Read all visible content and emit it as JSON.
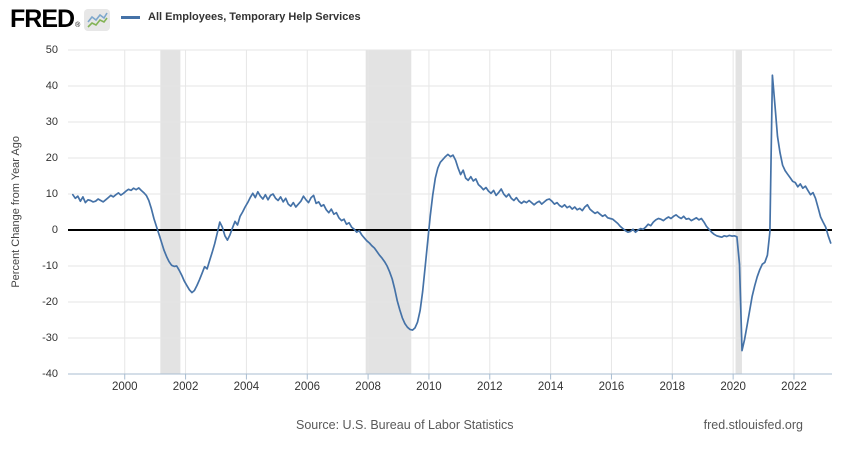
{
  "header": {
    "logo_text": "FRED",
    "registered_mark": "®",
    "legend": {
      "label": "All Employees, Temporary Help Services",
      "line_color": "#4572a7"
    }
  },
  "chart_data": {
    "type": "line",
    "title": "",
    "ylabel": "Percent Change from Year Ago",
    "units": "percent",
    "ylim": [
      -40,
      50
    ],
    "yticks": [
      50,
      40,
      30,
      20,
      10,
      0,
      -10,
      -20,
      -30,
      -40
    ],
    "xticks": [
      2000,
      2002,
      2004,
      2006,
      2008,
      2010,
      2012,
      2014,
      2016,
      2018,
      2020,
      2022
    ],
    "xlim_decimal_years": [
      1998.25,
      2023.25
    ],
    "grid": "both-light",
    "zero_line": true,
    "legend_position": "top-left-header",
    "recession_bands_decimal_years": [
      [
        2001.17,
        2001.83
      ],
      [
        2007.92,
        2009.42
      ],
      [
        2020.08,
        2020.29
      ]
    ],
    "colors": {
      "line": "#4572a7",
      "grid": "#e6e6e6",
      "zero_line": "#000000",
      "recession_band": "#e3e3e3",
      "axis": "#a9bdd1",
      "tick_label": "#333333"
    },
    "series": [
      {
        "name": "All Employees, Temporary Help Services",
        "color": "#4572a7",
        "frequency": "monthly",
        "start": "1998-04",
        "end": "2023-03",
        "values": [
          9.8,
          8.8,
          9.4,
          8.0,
          9.2,
          7.6,
          8.4,
          8.2,
          7.8,
          8.0,
          8.6,
          8.2,
          7.8,
          8.4,
          9.0,
          9.6,
          9.2,
          9.8,
          10.3,
          9.7,
          10.2,
          10.8,
          11.3,
          11.0,
          11.6,
          11.2,
          11.7,
          11.0,
          10.4,
          9.6,
          8.2,
          5.9,
          3.2,
          1.0,
          -1.2,
          -3.4,
          -5.6,
          -7.4,
          -8.8,
          -9.8,
          -10.1,
          -10.0,
          -11.2,
          -12.6,
          -14.2,
          -15.4,
          -16.6,
          -17.4,
          -16.8,
          -15.4,
          -13.8,
          -12.0,
          -10.2,
          -10.8,
          -8.4,
          -6.2,
          -3.8,
          -0.8,
          2.2,
          0.8,
          -1.6,
          -2.8,
          -1.4,
          0.6,
          2.4,
          1.4,
          3.8,
          5.0,
          6.4,
          7.6,
          9.0,
          10.2,
          9.0,
          10.6,
          9.4,
          8.6,
          9.8,
          8.4,
          9.6,
          10.0,
          8.8,
          8.2,
          9.2,
          7.8,
          8.8,
          7.2,
          6.6,
          7.6,
          6.4,
          7.2,
          8.0,
          9.4,
          8.4,
          7.6,
          9.0,
          9.6,
          7.4,
          7.8,
          6.6,
          7.0,
          5.6,
          4.8,
          5.8,
          4.4,
          4.8,
          3.4,
          2.6,
          3.0,
          1.6,
          2.0,
          0.8,
          0.2,
          -0.6,
          -0.2,
          -1.4,
          -2.2,
          -3.0,
          -3.6,
          -4.4,
          -5.0,
          -6.0,
          -7.0,
          -7.8,
          -8.8,
          -10.0,
          -11.6,
          -13.6,
          -16.4,
          -19.6,
          -22.2,
          -24.4,
          -26.0,
          -27.0,
          -27.6,
          -27.8,
          -27.2,
          -25.6,
          -22.4,
          -17.2,
          -10.4,
          -3.2,
          3.8,
          9.6,
          14.4,
          17.2,
          18.8,
          19.6,
          20.4,
          21.0,
          20.4,
          20.8,
          19.4,
          17.2,
          15.4,
          16.6,
          14.4,
          13.8,
          14.8,
          13.6,
          14.2,
          12.6,
          12.0,
          11.2,
          11.8,
          10.8,
          10.2,
          11.0,
          9.6,
          10.4,
          11.4,
          10.0,
          9.2,
          10.0,
          8.8,
          8.2,
          9.0,
          8.0,
          7.4,
          8.0,
          7.6,
          8.2,
          7.6,
          7.0,
          7.6,
          8.0,
          7.2,
          7.8,
          8.4,
          8.6,
          8.0,
          7.2,
          7.6,
          6.8,
          6.4,
          7.0,
          6.2,
          6.6,
          5.8,
          6.4,
          5.6,
          6.0,
          5.4,
          6.4,
          7.0,
          5.8,
          5.2,
          4.6,
          5.0,
          4.4,
          3.8,
          4.2,
          3.4,
          3.2,
          3.0,
          2.4,
          1.8,
          1.0,
          0.4,
          -0.2,
          -0.6,
          -0.4,
          0.2,
          -0.6,
          0.0,
          0.4,
          0.2,
          0.8,
          1.6,
          1.2,
          2.2,
          2.8,
          3.2,
          3.0,
          2.6,
          3.2,
          3.6,
          3.2,
          3.8,
          4.2,
          3.6,
          3.2,
          3.8,
          3.0,
          3.2,
          2.6,
          3.0,
          3.4,
          2.8,
          3.2,
          2.2,
          1.0,
          0.2,
          -0.6,
          -1.2,
          -1.6,
          -1.8,
          -2.0,
          -1.6,
          -1.8,
          -1.5,
          -1.7,
          -1.6,
          -1.9,
          -9.5,
          -33.5,
          -30.5,
          -26.5,
          -22.5,
          -18.5,
          -15.5,
          -13.0,
          -11.0,
          -9.5,
          -9.0,
          -7.0,
          -0.5,
          43.0,
          34.5,
          26.0,
          21.5,
          18.0,
          16.5,
          15.5,
          14.5,
          13.5,
          13.2,
          12.0,
          12.8,
          11.6,
          12.2,
          11.0,
          9.8,
          10.4,
          8.8,
          6.2,
          3.6,
          2.2,
          0.8,
          -1.6,
          -3.6
        ]
      }
    ]
  },
  "footer": {
    "source": "Source: U.S. Bureau of Labor Statistics",
    "site": "fred.stlouisfed.org"
  }
}
